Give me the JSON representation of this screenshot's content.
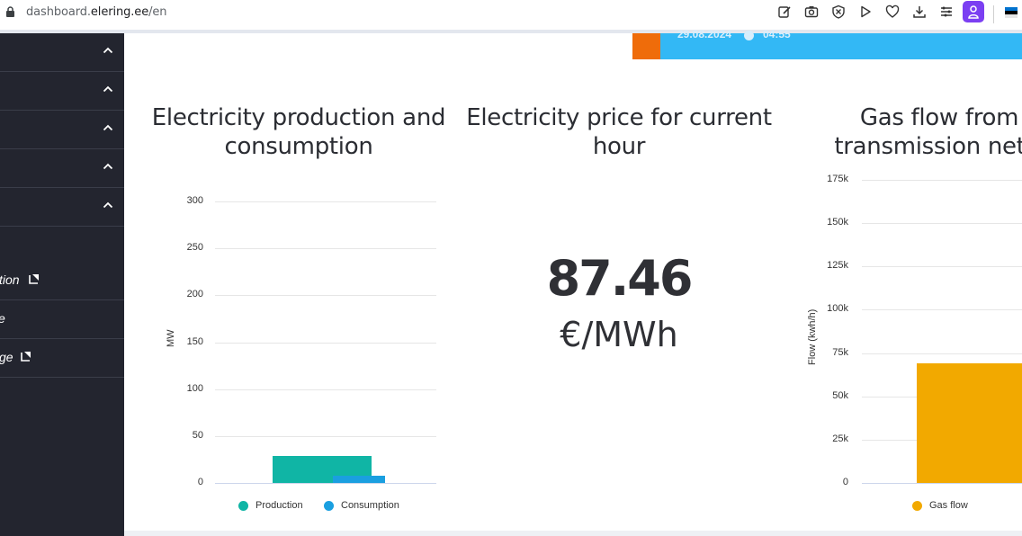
{
  "browser": {
    "url_prefix": "dashboard.",
    "url_host": "elering.ee",
    "url_path": "/en",
    "extensions": [
      "edit-icon",
      "camera-icon",
      "shield-icon",
      "play-icon",
      "heart-icon",
      "download-icon",
      "menu-icon"
    ],
    "profile_color": "#7b3ff2"
  },
  "sidebar": {
    "collapsible_items": [
      {
        "name": "section-1"
      },
      {
        "name": "section-2"
      },
      {
        "name": "section-3"
      },
      {
        "name": "section-4"
      },
      {
        "name": "section-5"
      }
    ],
    "links": [
      {
        "label": "tion",
        "external": true
      },
      {
        "label": "e",
        "external": false
      },
      {
        "label": "ge",
        "external": true
      }
    ]
  },
  "banner": {
    "date": "29.08.2024",
    "time": "04:55",
    "orange": "#ef6c0a",
    "blue": "#33b8f5"
  },
  "panels": {
    "production": {
      "title_line1": "Electricity production and",
      "title_line2": "consumption"
    },
    "price": {
      "title_line1": "Electricity price for current",
      "title_line2": "hour",
      "value": "87.46",
      "unit": "€/MWh"
    },
    "gas": {
      "title_line1": "Gas flow from",
      "title_line2": "transmission netw"
    }
  },
  "chart_data": [
    {
      "type": "bar",
      "ylabel": "MW",
      "ylim": [
        0,
        300
      ],
      "yticks": [
        "300",
        "250",
        "200",
        "150",
        "100",
        "50",
        "0"
      ],
      "series": [
        {
          "name": "Production",
          "values": [
            29
          ],
          "color": "#10b5a5"
        },
        {
          "name": "Consumption",
          "values": [
            8
          ],
          "color": "#1a9fe0"
        }
      ],
      "legend": [
        "Production",
        "Consumption"
      ]
    },
    {
      "type": "bar",
      "ylabel": "Flow (kwh/h)",
      "ylim": [
        0,
        175000
      ],
      "yticks": [
        "175k",
        "150k",
        "125k",
        "100k",
        "75k",
        "50k",
        "25k",
        "0"
      ],
      "series": [
        {
          "name": "Gas flow",
          "values": [
            69000
          ],
          "color": "#f2a900"
        }
      ],
      "legend": [
        "Gas flow"
      ]
    }
  ]
}
